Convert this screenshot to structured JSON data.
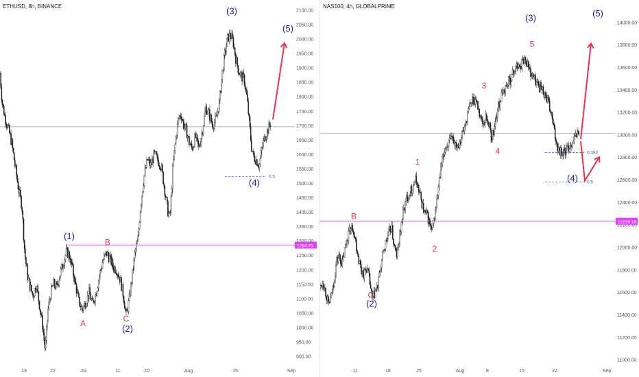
{
  "chart_data": [
    {
      "type": "candlestick",
      "title": "ETHUSD, 8h, BINANCE",
      "x_ticks": [
        "13",
        "22",
        "Jul",
        "11",
        "20",
        "Aug",
        "15",
        "Sep"
      ],
      "y_ticks": [
        900,
        950,
        1000,
        1050,
        1100,
        1150,
        1200,
        1250,
        1300,
        1350,
        1400,
        1450,
        1500,
        1550,
        1600,
        1650,
        1700,
        1750,
        1800,
        1850,
        1900,
        1950,
        2000,
        2050,
        2100
      ],
      "y_tick_labels": [
        "900.00",
        "950.00",
        "1000.00",
        "1050.00",
        "1100.00",
        "1150.00",
        "1200.00",
        "1250.00",
        "1300.00",
        "1350.00",
        "1400.00",
        "1450.00",
        "1500.00",
        "1550.00",
        "1600.00",
        "1650.00",
        "1700.00",
        "1750.00",
        "1800.00",
        "1850.00",
        "1900.00",
        "1950.00",
        "2000.00",
        "2050.00",
        "2100.00"
      ],
      "ylim": [
        880,
        2120
      ],
      "price_path": [
        [
          0,
          1880
        ],
        [
          3,
          1780
        ],
        [
          7,
          1730
        ],
        [
          12,
          1690
        ],
        [
          17,
          1640
        ],
        [
          22,
          1560
        ],
        [
          27,
          1480
        ],
        [
          32,
          1420
        ],
        [
          36,
          1260
        ],
        [
          40,
          1180
        ],
        [
          44,
          1140
        ],
        [
          48,
          1110
        ],
        [
          53,
          1150
        ],
        [
          58,
          1070
        ],
        [
          62,
          1010
        ],
        [
          66,
          920
        ],
        [
          70,
          1060
        ],
        [
          74,
          1120
        ],
        [
          78,
          1150
        ],
        [
          83,
          1140
        ],
        [
          88,
          1190
        ],
        [
          93,
          1230
        ],
        [
          97,
          1262
        ],
        [
          101,
          1250
        ],
        [
          105,
          1210
        ],
        [
          110,
          1150
        ],
        [
          115,
          1090
        ],
        [
          120,
          1060
        ],
        [
          125,
          1090
        ],
        [
          130,
          1120
        ],
        [
          135,
          1080
        ],
        [
          140,
          1120
        ],
        [
          145,
          1180
        ],
        [
          150,
          1230
        ],
        [
          155,
          1258
        ],
        [
          160,
          1240
        ],
        [
          165,
          1210
        ],
        [
          170,
          1200
        ],
        [
          175,
          1170
        ],
        [
          180,
          1110
        ],
        [
          184,
          1040
        ],
        [
          188,
          1090
        ],
        [
          193,
          1180
        ],
        [
          197,
          1260
        ],
        [
          201,
          1300
        ],
        [
          205,
          1420
        ],
        [
          210,
          1520
        ],
        [
          215,
          1580
        ],
        [
          220,
          1560
        ],
        [
          225,
          1600
        ],
        [
          230,
          1580
        ],
        [
          235,
          1560
        ],
        [
          240,
          1480
        ],
        [
          245,
          1400
        ],
        [
          248,
          1380
        ],
        [
          252,
          1550
        ],
        [
          256,
          1650
        ],
        [
          260,
          1720
        ],
        [
          264,
          1740
        ],
        [
          268,
          1700
        ],
        [
          272,
          1680
        ],
        [
          276,
          1640
        ],
        [
          280,
          1620
        ],
        [
          285,
          1660
        ],
        [
          290,
          1620
        ],
        [
          295,
          1680
        ],
        [
          300,
          1760
        ],
        [
          305,
          1740
        ],
        [
          310,
          1700
        ],
        [
          315,
          1720
        ],
        [
          320,
          1780
        ],
        [
          324,
          1880
        ],
        [
          328,
          1950
        ],
        [
          332,
          2000
        ],
        [
          336,
          2015
        ],
        [
          340,
          1990
        ],
        [
          344,
          1930
        ],
        [
          348,
          1890
        ],
        [
          352,
          1870
        ],
        [
          356,
          1860
        ],
        [
          360,
          1800
        ],
        [
          364,
          1700
        ],
        [
          367,
          1620
        ],
        [
          370,
          1590
        ],
        [
          374,
          1580
        ],
        [
          378,
          1560
        ],
        [
          382,
          1620
        ],
        [
          386,
          1660
        ],
        [
          390,
          1680
        ],
        [
          395,
          1710
        ]
      ],
      "horizontal_lines": [
        {
          "price": 1695,
          "color": "#9e9e9e"
        },
        {
          "price": 1284.76,
          "color": "#e040fb",
          "label": "1284.76"
        }
      ],
      "fib_levels": [
        {
          "label": "0.5",
          "price": 1522
        }
      ],
      "wave_labels": [
        {
          "text": "(1)",
          "price": 1305,
          "bar": 101,
          "color": "#1a1aaa"
        },
        {
          "text": "(2)",
          "price": 985,
          "bar": 186,
          "color": "#1a1aaa"
        },
        {
          "text": "(3)",
          "price": 2085,
          "bar": 338,
          "color": "#1a1aaa"
        },
        {
          "text": "(4)",
          "price": 1490,
          "bar": 371,
          "color": "#1a1aaa"
        },
        {
          "text": "(5)",
          "price": 2025,
          "bar": 420,
          "color": "#1a1aaa"
        },
        {
          "text": "A",
          "price": 1003,
          "bar": 121,
          "color": "#e8334a"
        },
        {
          "text": "B",
          "price": 1285,
          "bar": 157,
          "color": "#e8334a"
        },
        {
          "text": "C",
          "price": 1020,
          "bar": 184,
          "color": "#e8334a"
        }
      ],
      "projection": [
        [
          398,
          1720
        ],
        [
          415,
          1985
        ]
      ]
    },
    {
      "type": "candlestick",
      "title": "NAS100, 4h, GLOBALPRIME",
      "x_ticks": [
        "11",
        "18",
        "25",
        "Aug",
        "8",
        "15",
        "22",
        "Sep"
      ],
      "y_ticks": [
        11000,
        11200,
        11400,
        11600,
        11800,
        12000,
        12200,
        12400,
        12600,
        12800,
        13000,
        13200,
        13400,
        13600,
        13800,
        14000
      ],
      "y_tick_labels": [
        "11000.00",
        "11200.00",
        "11400.00",
        "11600.00",
        "11800.00",
        "12000.00",
        "12200.00",
        "12400.00",
        "12600.00",
        "12800.00",
        "13000.00",
        "13200.00",
        "13400.00",
        "13600.00",
        "13800.00",
        "14000.00"
      ],
      "ylim": [
        10980,
        14160
      ],
      "price_path": [
        [
          0,
          11640
        ],
        [
          4,
          11700
        ],
        [
          8,
          11600
        ],
        [
          12,
          11480
        ],
        [
          16,
          11560
        ],
        [
          20,
          11700
        ],
        [
          24,
          11880
        ],
        [
          28,
          11920
        ],
        [
          32,
          11850
        ],
        [
          36,
          11980
        ],
        [
          40,
          12100
        ],
        [
          44,
          12160
        ],
        [
          48,
          12180
        ],
        [
          52,
          12040
        ],
        [
          56,
          11900
        ],
        [
          60,
          11800
        ],
        [
          64,
          11760
        ],
        [
          68,
          11820
        ],
        [
          72,
          11700
        ],
        [
          76,
          11520
        ],
        [
          80,
          11600
        ],
        [
          84,
          11650
        ],
        [
          88,
          11820
        ],
        [
          92,
          11950
        ],
        [
          96,
          12050
        ],
        [
          100,
          12120
        ],
        [
          104,
          12180
        ],
        [
          108,
          12000
        ],
        [
          112,
          11920
        ],
        [
          116,
          12100
        ],
        [
          120,
          12280
        ],
        [
          124,
          12380
        ],
        [
          128,
          12460
        ],
        [
          132,
          12500
        ],
        [
          136,
          12560
        ],
        [
          140,
          12600
        ],
        [
          144,
          12500
        ],
        [
          148,
          12400
        ],
        [
          152,
          12300
        ],
        [
          156,
          12280
        ],
        [
          160,
          12200
        ],
        [
          163,
          12120
        ],
        [
          166,
          12250
        ],
        [
          170,
          12400
        ],
        [
          174,
          12600
        ],
        [
          178,
          12760
        ],
        [
          182,
          12880
        ],
        [
          186,
          12920
        ],
        [
          190,
          12940
        ],
        [
          194,
          12960
        ],
        [
          198,
          12920
        ],
        [
          202,
          12920
        ],
        [
          206,
          12990
        ],
        [
          210,
          13050
        ],
        [
          214,
          13150
        ],
        [
          218,
          13250
        ],
        [
          222,
          13310
        ],
        [
          226,
          13320
        ],
        [
          230,
          13250
        ],
        [
          234,
          13150
        ],
        [
          238,
          13100
        ],
        [
          242,
          13160
        ],
        [
          246,
          13100
        ],
        [
          250,
          12960
        ],
        [
          254,
          13060
        ],
        [
          258,
          13200
        ],
        [
          262,
          13300
        ],
        [
          266,
          13360
        ],
        [
          270,
          13420
        ],
        [
          274,
          13460
        ],
        [
          278,
          13500
        ],
        [
          282,
          13560
        ],
        [
          286,
          13600
        ],
        [
          290,
          13600
        ],
        [
          294,
          13640
        ],
        [
          298,
          13680
        ],
        [
          302,
          13640
        ],
        [
          306,
          13560
        ],
        [
          310,
          13520
        ],
        [
          314,
          13480
        ],
        [
          318,
          13440
        ],
        [
          322,
          13420
        ],
        [
          326,
          13380
        ],
        [
          330,
          13330
        ],
        [
          334,
          13250
        ],
        [
          338,
          13150
        ],
        [
          342,
          13000
        ],
        [
          346,
          12900
        ],
        [
          350,
          12860
        ],
        [
          354,
          12840
        ],
        [
          358,
          12850
        ],
        [
          362,
          12880
        ],
        [
          366,
          12920
        ],
        [
          370,
          12960
        ],
        [
          374,
          13000
        ],
        [
          378,
          13040
        ]
      ],
      "horizontal_lines": [
        {
          "price": 13010,
          "color": "#9e9e9e"
        },
        {
          "price": 12230.19,
          "color": "#e040fb",
          "label": "12230.19"
        }
      ],
      "fib_levels": [
        {
          "label": "0.382",
          "price": 12840
        },
        {
          "label": "0.5",
          "price": 12580
        }
      ],
      "wave_labels": [
        {
          "text": "(2)",
          "price": 11470,
          "bar": 75,
          "color": "#1a1aaa"
        },
        {
          "text": "(3)",
          "price": 14010,
          "bar": 307,
          "color": "#1a1aaa"
        },
        {
          "text": "(4)",
          "price": 12585,
          "bar": 368,
          "color": "#1a1aaa"
        },
        {
          "text": "(5)",
          "price": 14050,
          "bar": 405,
          "color": "#1a1aaa"
        },
        {
          "text": "B",
          "price": 12250,
          "bar": 49,
          "color": "#e8334a"
        },
        {
          "text": "C",
          "price": 11550,
          "bar": 74,
          "color": "#e8334a"
        },
        {
          "text": "1",
          "price": 12730,
          "bar": 142,
          "color": "#e8334a"
        },
        {
          "text": "2",
          "price": 11960,
          "bar": 167,
          "color": "#e8334a"
        },
        {
          "text": "3",
          "price": 13410,
          "bar": 239,
          "color": "#e8334a"
        },
        {
          "text": "4",
          "price": 12830,
          "bar": 259,
          "color": "#e8334a"
        },
        {
          "text": "5",
          "price": 13780,
          "bar": 309,
          "color": "#e8334a"
        }
      ],
      "projection": [
        [
          380,
          12960
        ],
        [
          395,
          13810
        ]
      ],
      "projection_alt": [
        [
          380,
          12940
        ],
        [
          386,
          12590
        ],
        [
          407,
          12800
        ]
      ]
    }
  ]
}
